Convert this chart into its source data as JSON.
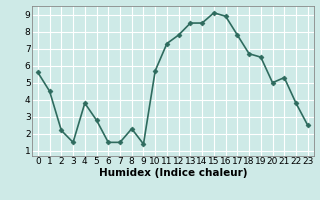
{
  "x": [
    0,
    1,
    2,
    3,
    4,
    5,
    6,
    7,
    8,
    9,
    10,
    11,
    12,
    13,
    14,
    15,
    16,
    17,
    18,
    19,
    20,
    21,
    22,
    23
  ],
  "y": [
    5.6,
    4.5,
    2.2,
    1.5,
    3.8,
    2.8,
    1.5,
    1.5,
    2.3,
    1.4,
    5.7,
    7.3,
    7.8,
    8.5,
    8.5,
    9.1,
    8.9,
    7.8,
    6.7,
    6.5,
    5.0,
    5.3,
    3.8,
    2.5
  ],
  "xlabel": "Humidex (Indice chaleur)",
  "line_color": "#2e6b5e",
  "marker": "D",
  "marker_size": 2.5,
  "bg_color": "#ceeae7",
  "grid_color": "#ffffff",
  "xlim": [
    -0.5,
    23.5
  ],
  "ylim": [
    0.7,
    9.5
  ],
  "yticks": [
    1,
    2,
    3,
    4,
    5,
    6,
    7,
    8,
    9
  ],
  "xticks": [
    0,
    1,
    2,
    3,
    4,
    5,
    6,
    7,
    8,
    9,
    10,
    11,
    12,
    13,
    14,
    15,
    16,
    17,
    18,
    19,
    20,
    21,
    22,
    23
  ],
  "xtick_labels": [
    "0",
    "1",
    "2",
    "3",
    "4",
    "5",
    "6",
    "7",
    "8",
    "9",
    "10",
    "11",
    "12",
    "13",
    "14",
    "15",
    "16",
    "17",
    "18",
    "19",
    "20",
    "21",
    "22",
    "23"
  ],
  "xlabel_fontsize": 7.5,
  "tick_fontsize": 6.5,
  "line_width": 1.2
}
